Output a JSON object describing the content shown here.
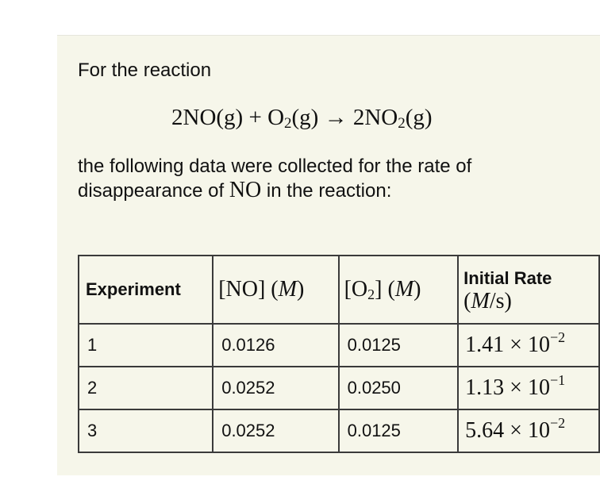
{
  "intro": "For the reaction",
  "equation": {
    "reactant1": "2NO(g)",
    "plus": "+",
    "reactant2_base": "O",
    "reactant2_sub": "2",
    "reactant2_phase": "(g)",
    "arrow": "→",
    "product_base": "2NO",
    "product_sub": "2",
    "product_phase": "(g)"
  },
  "sentence": {
    "before": "the following data were collected for the rate of disappearance of ",
    "species": "NO",
    "after": " in the reaction:"
  },
  "table": {
    "headers": {
      "experiment": "Experiment",
      "no_conc": "[NO]",
      "no_unit_open": " (",
      "no_unit": "M",
      "no_unit_close": ")",
      "o2_conc_open": "[O",
      "o2_conc_sub": "2",
      "o2_conc_close": "]",
      "o2_unit_open": " (",
      "o2_unit": "M",
      "o2_unit_close": ")",
      "rate_line1": "Initial Rate",
      "rate_line2_open": "(",
      "rate_line2_unit": "M",
      "rate_line2_close": "/s)"
    },
    "rows": [
      {
        "experiment": "1",
        "no": "0.0126",
        "o2": "0.0125",
        "rate_mantissa": "1.41",
        "rate_times": " × 10",
        "rate_exp": "−2"
      },
      {
        "experiment": "2",
        "no": "0.0252",
        "o2": "0.0250",
        "rate_mantissa": "1.13",
        "rate_times": " × 10",
        "rate_exp": "−1"
      },
      {
        "experiment": "3",
        "no": "0.0252",
        "o2": "0.0125",
        "rate_mantissa": "5.64",
        "rate_times": " × 10",
        "rate_exp": "−2"
      }
    ]
  }
}
